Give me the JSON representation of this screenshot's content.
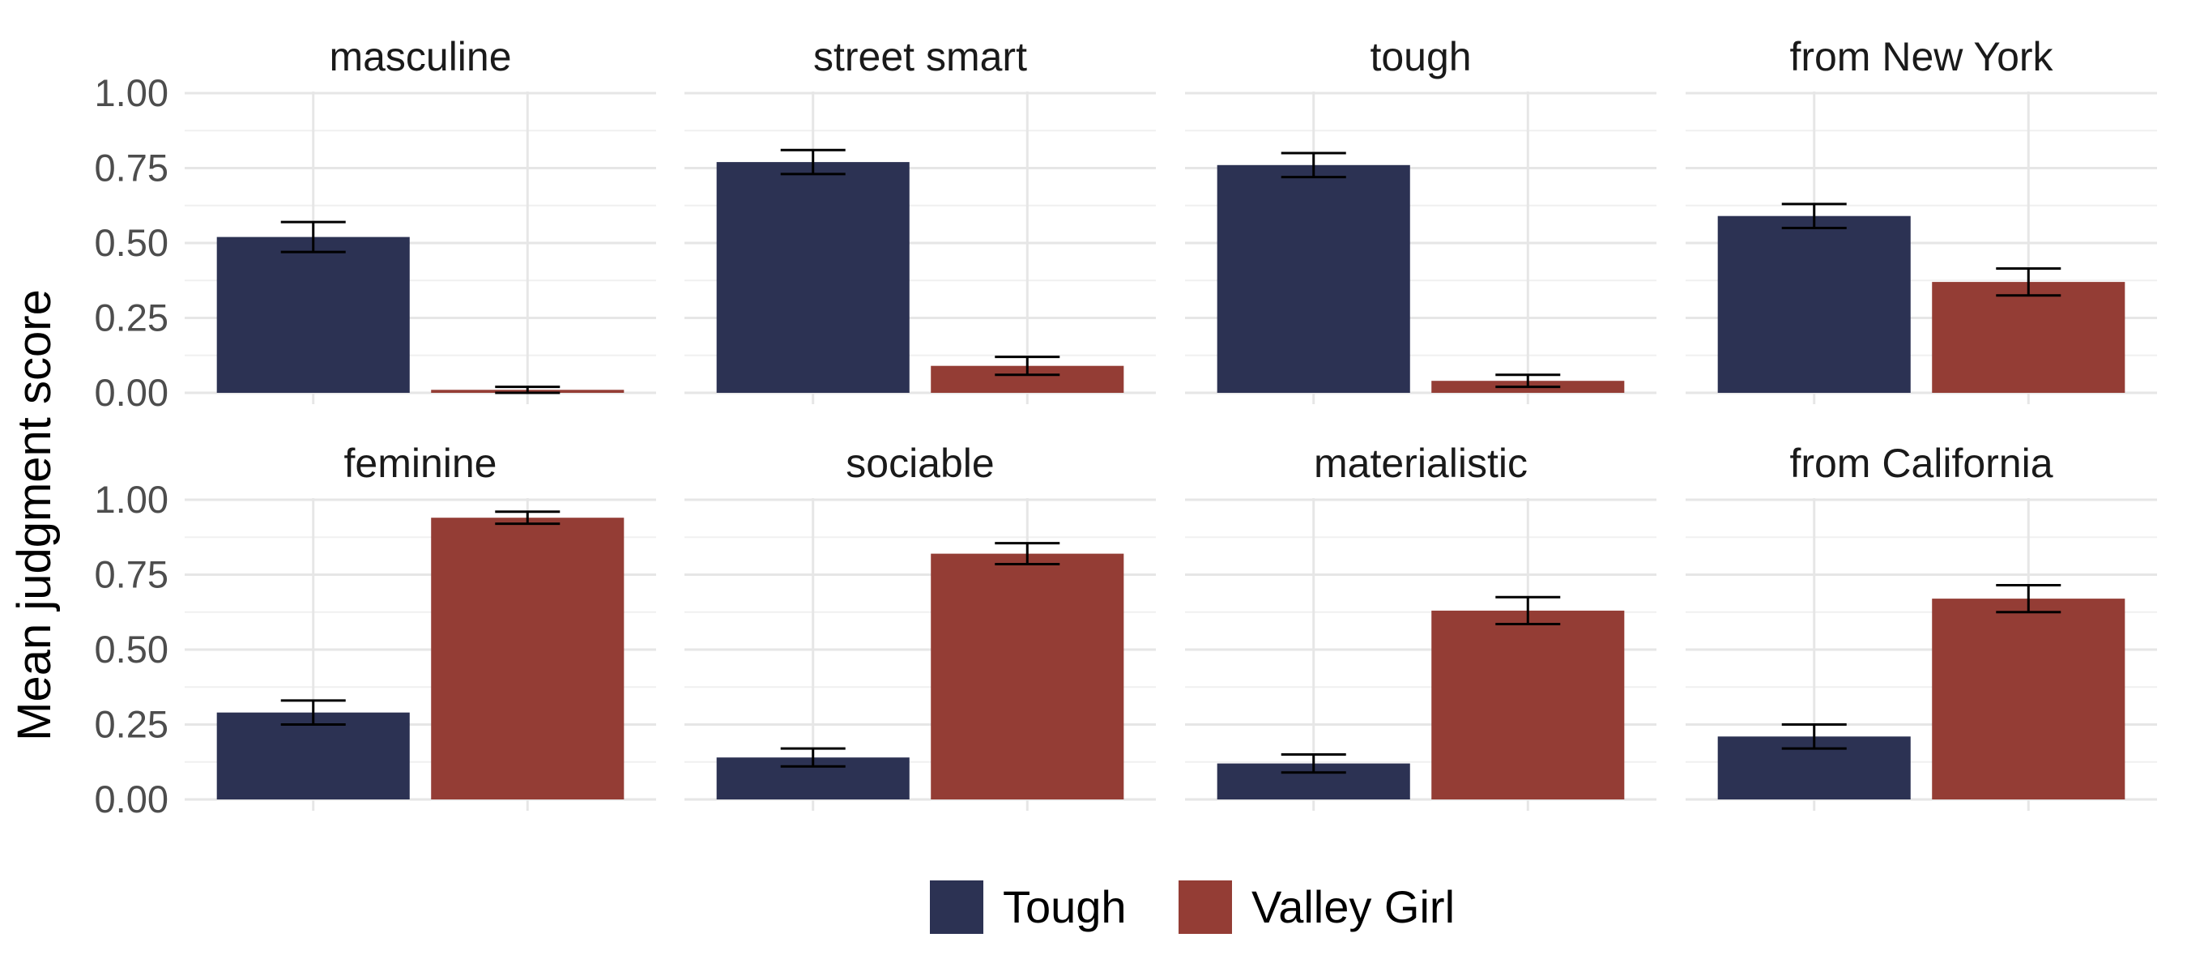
{
  "chart_data": {
    "type": "bar",
    "title": "",
    "xlabel": "",
    "ylabel": "Mean judgment score",
    "ylim": [
      0,
      1
    ],
    "yticks": [
      "0.00",
      "0.25",
      "0.50",
      "0.75",
      "1.00"
    ],
    "yticks_values": [
      0,
      0.25,
      0.5,
      0.75,
      1.0
    ],
    "grid": true,
    "legend_position": "bottom",
    "categories": [
      "Tough",
      "Valley Girl"
    ],
    "colors": {
      "Tough": "#2c3253",
      "Valley Girl": "#943d35"
    },
    "legend": [
      {
        "name": "Tough",
        "color": "#2c3253"
      },
      {
        "name": "Valley Girl",
        "color": "#943d35"
      }
    ],
    "facets": [
      {
        "title": "masculine",
        "values": [
          0.52,
          0.01
        ],
        "errors": [
          0.05,
          0.01
        ]
      },
      {
        "title": "street smart",
        "values": [
          0.77,
          0.09
        ],
        "errors": [
          0.04,
          0.03
        ]
      },
      {
        "title": "tough",
        "values": [
          0.76,
          0.04
        ],
        "errors": [
          0.04,
          0.02
        ]
      },
      {
        "title": "from New York",
        "values": [
          0.59,
          0.37
        ],
        "errors": [
          0.04,
          0.045
        ]
      },
      {
        "title": "feminine",
        "values": [
          0.29,
          0.94
        ],
        "errors": [
          0.04,
          0.02
        ]
      },
      {
        "title": "sociable",
        "values": [
          0.14,
          0.82
        ],
        "errors": [
          0.03,
          0.035
        ]
      },
      {
        "title": "materialistic",
        "values": [
          0.12,
          0.63
        ],
        "errors": [
          0.03,
          0.045
        ]
      },
      {
        "title": "from California",
        "values": [
          0.21,
          0.67
        ],
        "errors": [
          0.04,
          0.045
        ]
      }
    ]
  }
}
